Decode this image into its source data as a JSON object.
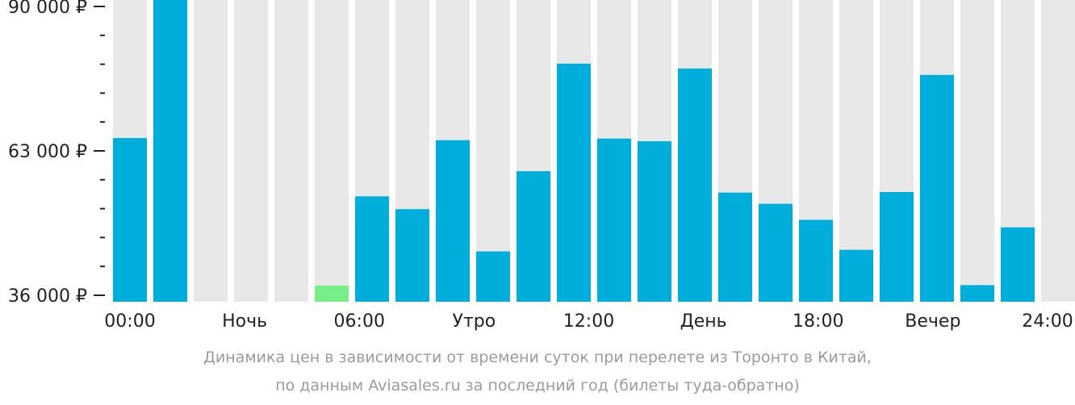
{
  "chart_data": {
    "type": "bar",
    "currency": "₽",
    "ylim": [
      36000,
      90000
    ],
    "y_ticks": [
      {
        "value": 90000,
        "label": "90 000 ₽"
      },
      {
        "value": 63000,
        "label": "63 000 ₽"
      },
      {
        "value": 36000,
        "label": "36 000 ₽"
      }
    ],
    "minor_tick_step": 5400,
    "x_ticks": [
      "00:00",
      "Ночь",
      "06:00",
      "Утро",
      "12:00",
      "День",
      "18:00",
      "Вечер",
      "24:00"
    ],
    "hours": [
      0,
      1,
      2,
      3,
      4,
      5,
      6,
      7,
      8,
      9,
      10,
      11,
      12,
      13,
      14,
      15,
      16,
      17,
      18,
      19,
      20,
      21,
      22,
      23
    ],
    "values": [
      65400,
      93000,
      null,
      null,
      null,
      37800,
      54500,
      52100,
      65000,
      44200,
      59200,
      79300,
      65300,
      64800,
      78400,
      55200,
      53100,
      50100,
      44500,
      55300,
      77200,
      37900,
      48700,
      null
    ],
    "highlight_index": 5,
    "colors": {
      "bar": "#00aedb",
      "highlight": "#77ee88",
      "background_column": "#e8e8e8",
      "axis": "#222222"
    }
  },
  "caption": {
    "line1": "Динамика цен в зависимости от времени суток при перелете из Торонто в Китай,",
    "line2": "по данным Aviasales.ru за последний год (билеты туда-обратно)"
  }
}
